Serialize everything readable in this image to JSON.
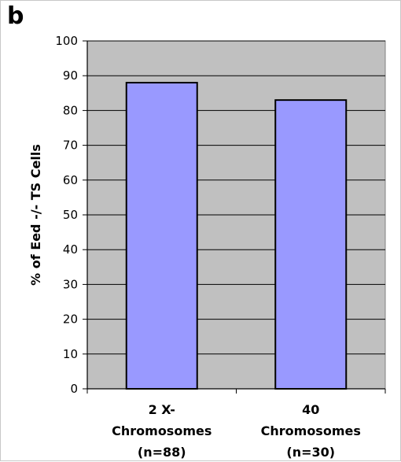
{
  "panel_label": "b",
  "chart_data": {
    "type": "bar",
    "title": "",
    "xlabel": "",
    "ylabel": "% of Eed -/- TS Cells",
    "ylim": [
      0,
      100
    ],
    "yticks": [
      0,
      10,
      20,
      30,
      40,
      50,
      60,
      70,
      80,
      90,
      100
    ],
    "grid": true,
    "categories": [
      [
        "2 X-",
        "Chromosomes",
        "(n=88)"
      ],
      [
        "40",
        "Chromosomes",
        "(n=30)"
      ]
    ],
    "values": [
      88,
      83
    ],
    "colors": {
      "bar": "#9999ff",
      "bar_edge": "#000000",
      "plot_background": "#c0c0c0",
      "gridline": "#000000"
    }
  }
}
